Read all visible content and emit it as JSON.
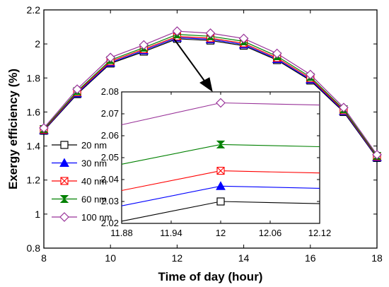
{
  "chart_data": [
    {
      "type": "line",
      "role": "main",
      "title": "",
      "xlabel": "Time of day (hour)",
      "ylabel": "Exergy efficiency (%)",
      "xlim": [
        8,
        18
      ],
      "ylim": [
        0.8,
        2.2
      ],
      "xticks": [
        8,
        10,
        12,
        14,
        16,
        18
      ],
      "yticks": [
        0.8,
        1,
        1.2,
        1.4,
        1.6,
        1.8,
        2,
        2.2
      ],
      "grid": false,
      "x": [
        8,
        9,
        10,
        11,
        12,
        13,
        14,
        15,
        16,
        17,
        18
      ],
      "series": [
        {
          "name": "20 nm",
          "color": "#000000",
          "marker": "square",
          "values": [
            1.49,
            1.705,
            1.885,
            1.955,
            2.03,
            2.02,
            1.99,
            1.905,
            1.785,
            1.6,
            1.33
          ]
        },
        {
          "name": "30 nm",
          "color": "#0000ff",
          "marker": "triangle",
          "values": [
            1.493,
            1.71,
            1.89,
            1.962,
            2.037,
            2.027,
            1.997,
            1.911,
            1.791,
            1.605,
            1.334
          ]
        },
        {
          "name": "40 nm",
          "color": "#ff0000",
          "marker": "x-square",
          "values": [
            1.496,
            1.716,
            1.897,
            1.969,
            2.044,
            2.034,
            2.004,
            1.918,
            1.798,
            1.61,
            1.338
          ]
        },
        {
          "name": "60 nm",
          "color": "#008000",
          "marker": "hourglass",
          "values": [
            1.5,
            1.722,
            1.905,
            1.978,
            2.056,
            2.045,
            2.015,
            1.928,
            1.806,
            1.616,
            1.342
          ]
        },
        {
          "name": "100 nm",
          "color": "#993399",
          "marker": "diamond",
          "values": [
            1.506,
            1.734,
            1.92,
            1.994,
            2.075,
            2.063,
            2.032,
            1.944,
            1.82,
            1.626,
            1.349
          ]
        }
      ]
    },
    {
      "type": "line",
      "role": "inset",
      "title": "",
      "xlabel": "",
      "ylabel": "",
      "xlim": [
        11.88,
        12.12
      ],
      "ylim": [
        2.02,
        2.08
      ],
      "xticks": [
        11.88,
        11.94,
        12,
        12.06,
        12.12
      ],
      "yticks": [
        2.02,
        2.03,
        2.04,
        2.05,
        2.06,
        2.07,
        2.08
      ],
      "grid": false,
      "series_values": [
        {
          "name": "20 nm",
          "x": [
            11.88,
            12,
            12.12
          ],
          "values": [
            2.021,
            2.03,
            2.029
          ]
        },
        {
          "name": "30 nm",
          "x": [
            11.88,
            12,
            12.12
          ],
          "values": [
            2.028,
            2.037,
            2.036
          ]
        },
        {
          "name": "40 nm",
          "x": [
            11.88,
            12,
            12.12
          ],
          "values": [
            2.035,
            2.044,
            2.043
          ]
        },
        {
          "name": "60 nm",
          "x": [
            11.88,
            12,
            12.12
          ],
          "values": [
            2.047,
            2.056,
            2.055
          ]
        },
        {
          "name": "100 nm",
          "x": [
            11.88,
            12,
            12.12
          ],
          "values": [
            2.065,
            2.075,
            2.074
          ]
        }
      ]
    }
  ]
}
